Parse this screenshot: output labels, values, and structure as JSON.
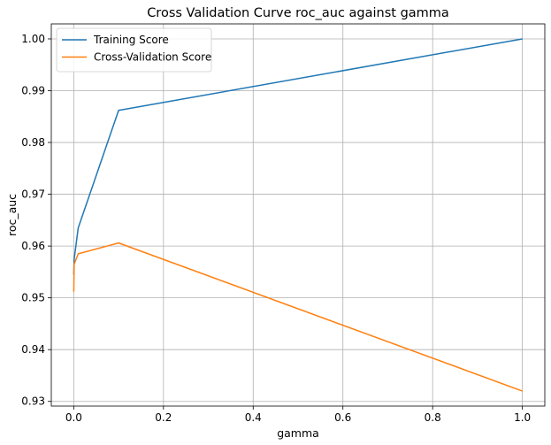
{
  "chart_data": {
    "type": "line",
    "title": "Cross Validation Curve roc_auc against gamma",
    "xlabel": "gamma",
    "ylabel": "roc_auc",
    "xlim": [
      -0.05,
      1.05
    ],
    "ylim": [
      0.9291,
      1.0029
    ],
    "xticks": [
      0.0,
      0.2,
      0.4,
      0.6,
      0.8,
      1.0
    ],
    "xtick_labels": [
      "0.0",
      "0.2",
      "0.4",
      "0.6",
      "0.8",
      "1.0"
    ],
    "yticks": [
      0.93,
      0.94,
      0.95,
      0.96,
      0.97,
      0.98,
      0.99,
      1.0
    ],
    "ytick_labels": [
      "0.93",
      "0.94",
      "0.95",
      "0.96",
      "0.97",
      "0.98",
      "0.99",
      "1.00"
    ],
    "grid": true,
    "legend_position": "top-left",
    "series": [
      {
        "name": "Training Score",
        "color": "#1f77b4",
        "x": [
          0.0001,
          0.001,
          0.01,
          0.1,
          1.0
        ],
        "y": [
          0.9545,
          0.9575,
          0.9635,
          0.9862,
          1.0
        ]
      },
      {
        "name": "Cross-Validation Score",
        "color": "#ff7f0e",
        "x": [
          0.0001,
          0.001,
          0.01,
          0.1,
          1.0
        ],
        "y": [
          0.9512,
          0.9565,
          0.9585,
          0.9606,
          0.932
        ]
      }
    ]
  }
}
